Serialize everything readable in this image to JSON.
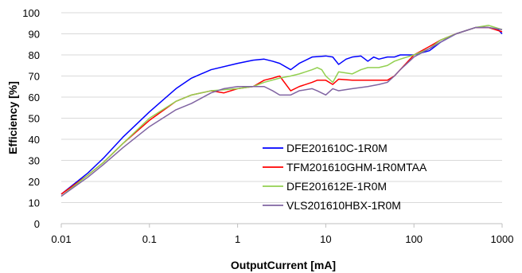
{
  "chart_data": {
    "type": "line",
    "xlabel": "OutputCurrent [mA]",
    "ylabel": "Efficiency [%]",
    "xscale": "log",
    "xlim": [
      0.01,
      1000
    ],
    "ylim": [
      0,
      100
    ],
    "xticks": [
      "0.01",
      "0.1",
      "1",
      "10",
      "100",
      "1000"
    ],
    "yticks": [
      "0",
      "10",
      "20",
      "30",
      "40",
      "50",
      "60",
      "70",
      "80",
      "90",
      "100"
    ],
    "grid": "horizontal",
    "legend_position": "inside-lower-right",
    "series": [
      {
        "name": "DFE201610C-1R0M",
        "color": "#0000ff",
        "points": [
          [
            0.01,
            14
          ],
          [
            0.02,
            24
          ],
          [
            0.03,
            31
          ],
          [
            0.05,
            41
          ],
          [
            0.1,
            53
          ],
          [
            0.2,
            64
          ],
          [
            0.3,
            69
          ],
          [
            0.5,
            73
          ],
          [
            1,
            76
          ],
          [
            1.5,
            77.5
          ],
          [
            2,
            78
          ],
          [
            2.5,
            77
          ],
          [
            3,
            76
          ],
          [
            4,
            73
          ],
          [
            5,
            76
          ],
          [
            7,
            79
          ],
          [
            10,
            79.5
          ],
          [
            12,
            79
          ],
          [
            14,
            75.5
          ],
          [
            17,
            78
          ],
          [
            20,
            79
          ],
          [
            25,
            79.5
          ],
          [
            30,
            77
          ],
          [
            35,
            79
          ],
          [
            40,
            78
          ],
          [
            50,
            79
          ],
          [
            60,
            79
          ],
          [
            70,
            80
          ],
          [
            100,
            80
          ],
          [
            150,
            82
          ],
          [
            200,
            86
          ],
          [
            300,
            90
          ],
          [
            500,
            93
          ],
          [
            700,
            93
          ],
          [
            900,
            92
          ],
          [
            1000,
            90
          ]
        ]
      },
      {
        "name": "TFM201610GHM-1R0MTAA",
        "color": "#ff0000",
        "points": [
          [
            0.01,
            14
          ],
          [
            0.02,
            23
          ],
          [
            0.03,
            29
          ],
          [
            0.05,
            38
          ],
          [
            0.1,
            49
          ],
          [
            0.2,
            58
          ],
          [
            0.3,
            61
          ],
          [
            0.5,
            63
          ],
          [
            0.7,
            62
          ],
          [
            1,
            64
          ],
          [
            1.5,
            65
          ],
          [
            2,
            68
          ],
          [
            2.5,
            69
          ],
          [
            3,
            70
          ],
          [
            4,
            63
          ],
          [
            5,
            65
          ],
          [
            7,
            67
          ],
          [
            8,
            68
          ],
          [
            10,
            68
          ],
          [
            12,
            66
          ],
          [
            14,
            68.5
          ],
          [
            20,
            68
          ],
          [
            30,
            68
          ],
          [
            40,
            68
          ],
          [
            50,
            68
          ],
          [
            60,
            70
          ],
          [
            70,
            73
          ],
          [
            100,
            80
          ],
          [
            150,
            84
          ],
          [
            200,
            87
          ],
          [
            300,
            90
          ],
          [
            500,
            93
          ],
          [
            700,
            93
          ],
          [
            1000,
            91
          ]
        ]
      },
      {
        "name": "DFE201612E-1R0M",
        "color": "#92d050",
        "points": [
          [
            0.01,
            13
          ],
          [
            0.02,
            23
          ],
          [
            0.03,
            29
          ],
          [
            0.05,
            38
          ],
          [
            0.1,
            50
          ],
          [
            0.2,
            58
          ],
          [
            0.3,
            61
          ],
          [
            0.5,
            63
          ],
          [
            0.7,
            63.5
          ],
          [
            1,
            64
          ],
          [
            1.5,
            65
          ],
          [
            2,
            67
          ],
          [
            3,
            69
          ],
          [
            4,
            70
          ],
          [
            5,
            71
          ],
          [
            7,
            73
          ],
          [
            8,
            74
          ],
          [
            9,
            73
          ],
          [
            10,
            70
          ],
          [
            12,
            67
          ],
          [
            14,
            72
          ],
          [
            20,
            71
          ],
          [
            25,
            73
          ],
          [
            30,
            74
          ],
          [
            40,
            74
          ],
          [
            50,
            75
          ],
          [
            60,
            77
          ],
          [
            70,
            78
          ],
          [
            100,
            80
          ],
          [
            150,
            83
          ],
          [
            200,
            87
          ],
          [
            300,
            90
          ],
          [
            500,
            93
          ],
          [
            700,
            94
          ],
          [
            1000,
            92
          ]
        ]
      },
      {
        "name": "VLS201610HBX-1R0M",
        "color": "#8064a2",
        "points": [
          [
            0.01,
            13
          ],
          [
            0.02,
            22
          ],
          [
            0.03,
            28
          ],
          [
            0.05,
            36
          ],
          [
            0.1,
            46
          ],
          [
            0.2,
            54
          ],
          [
            0.3,
            57
          ],
          [
            0.5,
            62
          ],
          [
            0.7,
            64
          ],
          [
            1,
            65
          ],
          [
            1.5,
            65
          ],
          [
            2,
            65
          ],
          [
            2.5,
            63
          ],
          [
            3,
            61
          ],
          [
            4,
            61
          ],
          [
            5,
            63
          ],
          [
            7,
            64
          ],
          [
            8,
            63
          ],
          [
            10,
            61
          ],
          [
            12,
            64
          ],
          [
            14,
            63
          ],
          [
            20,
            64
          ],
          [
            30,
            65
          ],
          [
            40,
            66
          ],
          [
            50,
            67
          ],
          [
            60,
            70
          ],
          [
            70,
            73
          ],
          [
            100,
            79
          ],
          [
            150,
            83
          ],
          [
            200,
            86
          ],
          [
            300,
            90
          ],
          [
            500,
            93
          ],
          [
            700,
            93
          ],
          [
            1000,
            92
          ]
        ]
      }
    ]
  }
}
